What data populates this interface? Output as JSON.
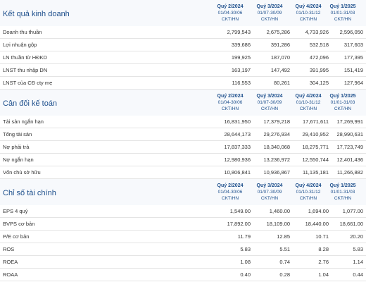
{
  "sections": [
    {
      "title": "Kết quả kinh doanh",
      "columns": [
        [
          "Quý 2/2024",
          "01/04-30/06",
          "CKT/HN"
        ],
        [
          "Quý 3/2024",
          "01/07-30/09",
          "CKT/HN"
        ],
        [
          "Quý 4/2024",
          "01/10-31/12",
          "CKT/HN"
        ],
        [
          "Quý 1/2025",
          "01/01-31/03",
          "CKT/HN"
        ]
      ],
      "rows": [
        [
          "Doanh thu thuần",
          "2,799,543",
          "2,675,286",
          "4,733,926",
          "2,596,050"
        ],
        [
          "Lợi nhuận gộp",
          "339,686",
          "391,286",
          "532,518",
          "317,603"
        ],
        [
          "LN thuần từ HĐKD",
          "199,925",
          "187,070",
          "472,096",
          "177,395"
        ],
        [
          "LNST thu nhập DN",
          "163,197",
          "147,492",
          "391,995",
          "151,419"
        ],
        [
          "LNST của CĐ cty mẹ",
          "116,553",
          "80,261",
          "304,125",
          "127,964"
        ]
      ]
    },
    {
      "title": "Cân đối kế toán",
      "columns": [
        [
          "Quý 2/2024",
          "01/04-30/06",
          "CKT/HN"
        ],
        [
          "Quý 3/2024",
          "01/07-30/09",
          "CKT/HN"
        ],
        [
          "Quý 4/2024",
          "01/10-31/12",
          "CKT/HN"
        ],
        [
          "Quý 1/2025",
          "01/01-31/03",
          "CKT/HN"
        ]
      ],
      "rows": [
        [
          "Tài sản ngắn hạn",
          "16,831,950",
          "17,379,218",
          "17,671,611",
          "17,269,991"
        ],
        [
          "Tổng tài sản",
          "28,644,173",
          "29,276,934",
          "29,410,952",
          "28,990,631"
        ],
        [
          "Nợ phải trả",
          "17,837,333",
          "18,340,068",
          "18,275,771",
          "17,723,749"
        ],
        [
          "Nợ ngắn hạn",
          "12,980,936",
          "13,236,972",
          "12,550,744",
          "12,401,436"
        ],
        [
          "Vốn chủ sở hữu",
          "10,806,841",
          "10,936,867",
          "11,135,181",
          "11,266,882"
        ]
      ]
    },
    {
      "title": "Chỉ số tài chính",
      "columns": [
        [
          "Quý 2/2024",
          "01/04-30/06",
          "CKT/HN"
        ],
        [
          "Quý 3/2024",
          "01/07-30/09",
          "CKT/HN"
        ],
        [
          "Quý 4/2024",
          "01/10-31/12",
          "CKT/HN"
        ],
        [
          "Quý 1/2025",
          "01/01-31/03",
          "CKT/HN"
        ]
      ],
      "rows": [
        [
          "EPS 4 quý",
          "1,549.00",
          "1,460.00",
          "1,694.00",
          "1,077.00"
        ],
        [
          "BVPS cơ bản",
          "17,892.00",
          "18,109.00",
          "18,440.00",
          "18,661.00"
        ],
        [
          "P/E cơ bản",
          "11.79",
          "12.85",
          "10.71",
          "20.20"
        ],
        [
          "ROS",
          "5.83",
          "5.51",
          "8.28",
          "5.83"
        ],
        [
          "ROEA",
          "1.08",
          "0.74",
          "2.76",
          "1.14"
        ],
        [
          "ROAA",
          "0.40",
          "0.28",
          "1.04",
          "0.44"
        ]
      ]
    }
  ]
}
